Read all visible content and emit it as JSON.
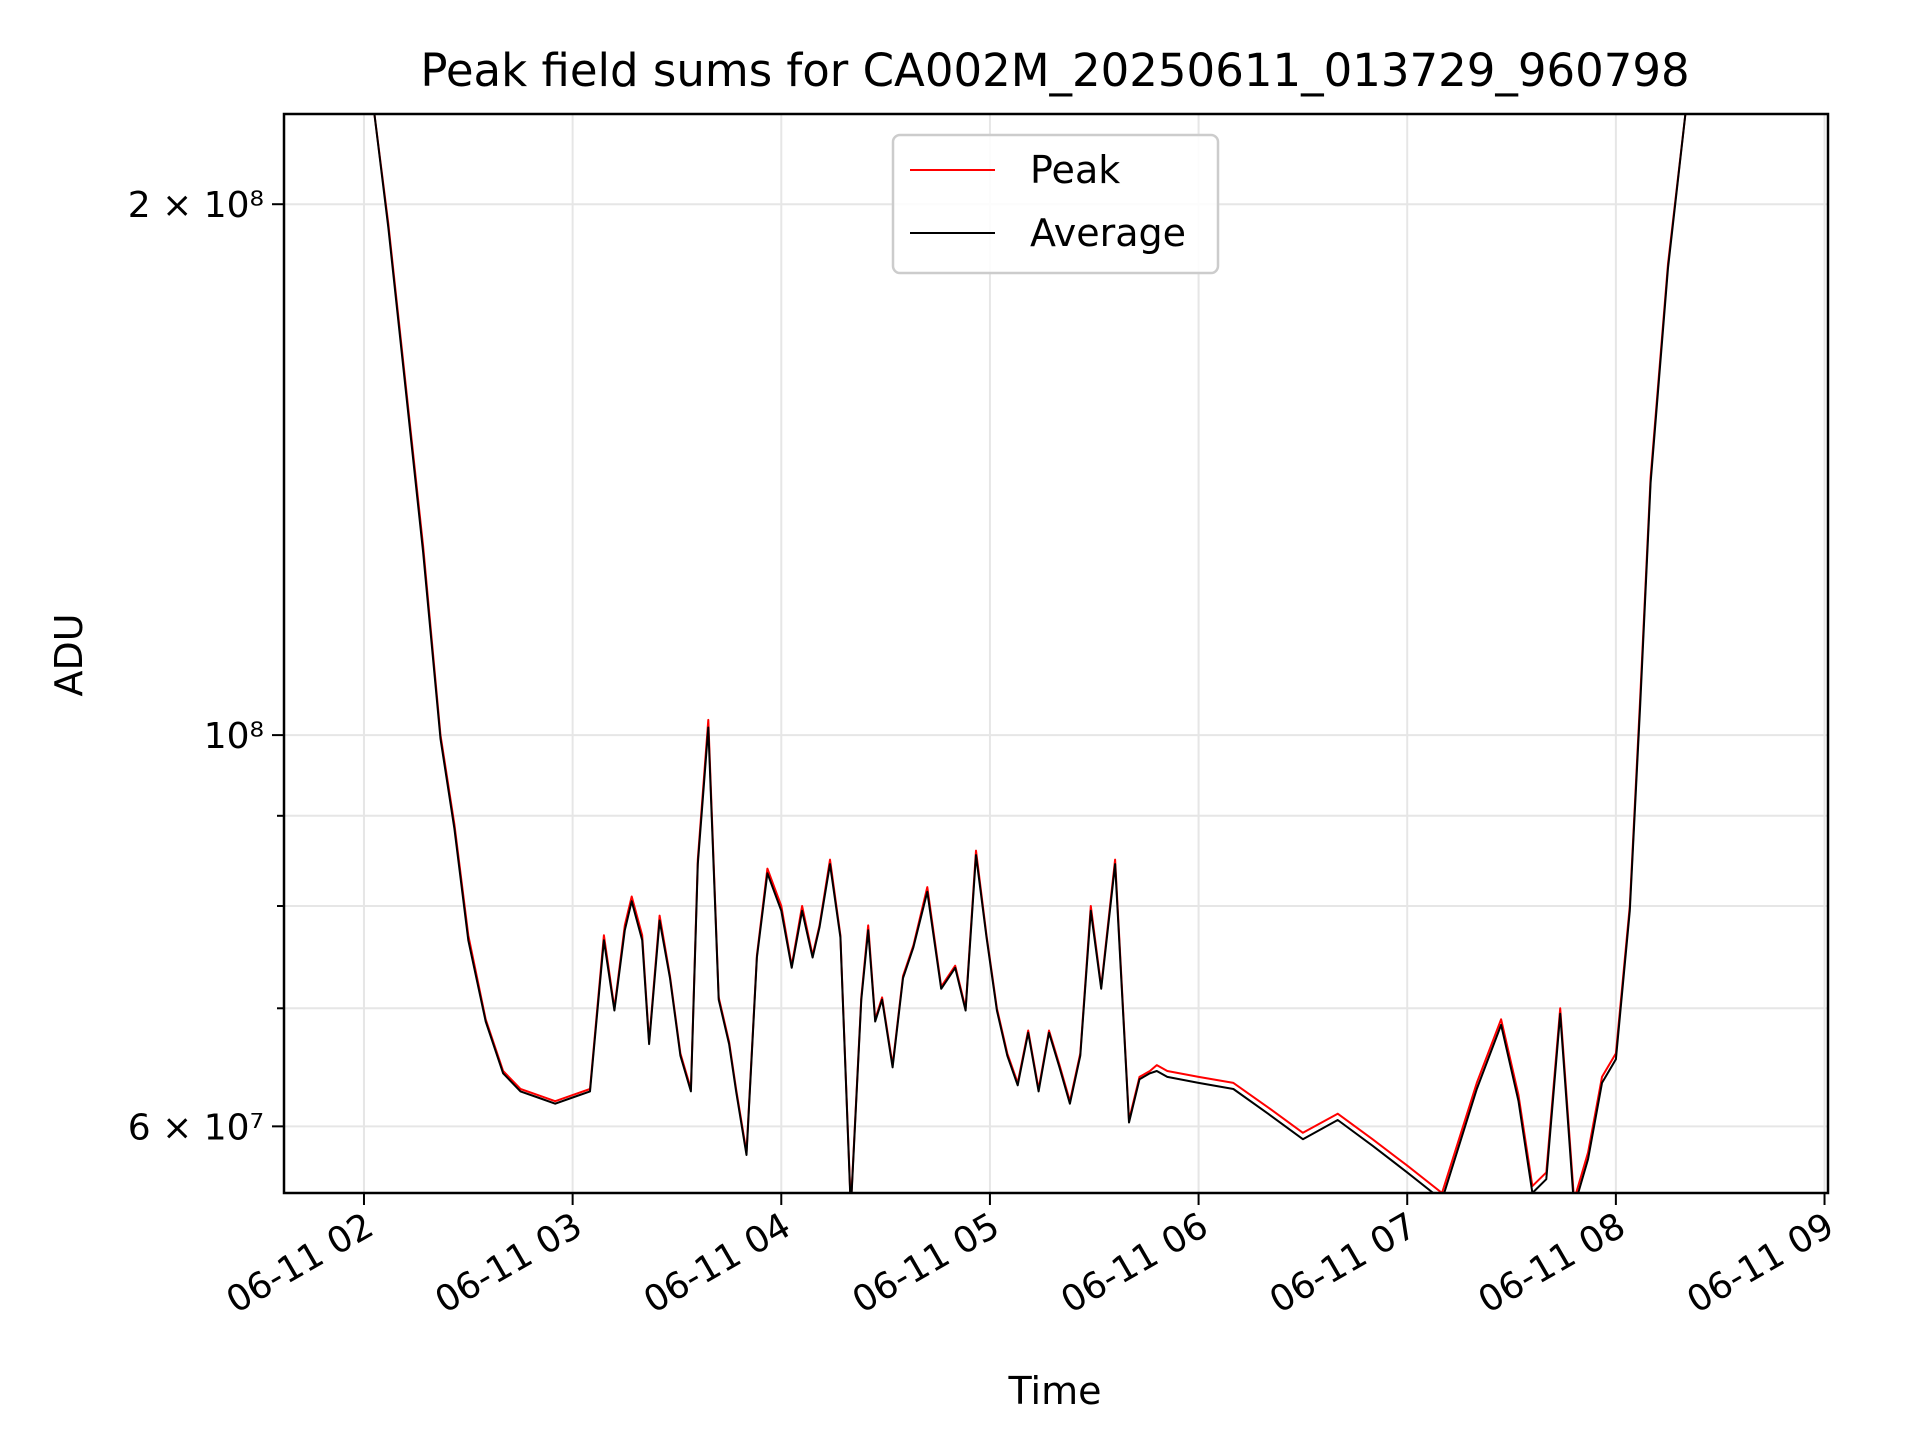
{
  "chart_data": {
    "type": "line",
    "title": "Peak field sums for CA002M_20250611_013729_960798",
    "xlabel": "Time",
    "ylabel": "ADU",
    "y_scale": "log",
    "grid": true,
    "legend_placement": "upper-center",
    "xlim": [
      "06-11 01:37",
      "06-11 09:01"
    ],
    "ylim": [
      55000000,
      225000000
    ],
    "x_ticks": [
      {
        "label": "06-11 02",
        "value": "06-11 02:00"
      },
      {
        "label": "06-11 03",
        "value": "06-11 03:00"
      },
      {
        "label": "06-11 04",
        "value": "06-11 04:00"
      },
      {
        "label": "06-11 05",
        "value": "06-11 05:00"
      },
      {
        "label": "06-11 06",
        "value": "06-11 06:00"
      },
      {
        "label": "06-11 07",
        "value": "06-11 07:00"
      },
      {
        "label": "06-11 08",
        "value": "06-11 08:00"
      },
      {
        "label": "06-11 09",
        "value": "06-11 09:00"
      }
    ],
    "y_ticks": [
      {
        "label": "2 × 10⁸",
        "value": 200000000
      },
      {
        "label": "10⁸",
        "value": 100000000
      },
      {
        "label": "6 × 10⁷",
        "value": 60000000
      }
    ],
    "y_minor_ticks": [
      70000000,
      80000000,
      90000000
    ],
    "series": [
      {
        "name": "Peak",
        "color": "#ff0000",
        "x": [
          "06-11 01:37",
          "06-11 02:03",
          "06-11 02:07",
          "06-11 02:12",
          "06-11 02:17",
          "06-11 02:22",
          "06-11 02:26",
          "06-11 02:30",
          "06-11 02:35",
          "06-11 02:40",
          "06-11 02:45",
          "06-11 02:50",
          "06-11 02:55",
          "06-11 03:00",
          "06-11 03:05",
          "06-11 03:09",
          "06-11 03:12",
          "06-11 03:15",
          "06-11 03:17",
          "06-11 03:20",
          "06-11 03:22",
          "06-11 03:25",
          "06-11 03:28",
          "06-11 03:31",
          "06-11 03:34",
          "06-11 03:36",
          "06-11 03:39",
          "06-11 03:42",
          "06-11 03:45",
          "06-11 03:47",
          "06-11 03:50",
          "06-11 03:53",
          "06-11 03:56",
          "06-11 04:00",
          "06-11 04:03",
          "06-11 04:06",
          "06-11 04:09",
          "06-11 04:11",
          "06-11 04:14",
          "06-11 04:17",
          "06-11 04:20",
          "06-11 04:23",
          "06-11 04:25",
          "06-11 04:27",
          "06-11 04:29",
          "06-11 04:32",
          "06-11 04:35",
          "06-11 04:38",
          "06-11 04:42",
          "06-11 04:46",
          "06-11 04:50",
          "06-11 04:53",
          "06-11 04:56",
          "06-11 04:59",
          "06-11 05:02",
          "06-11 05:05",
          "06-11 05:08",
          "06-11 05:11",
          "06-11 05:14",
          "06-11 05:17",
          "06-11 05:20",
          "06-11 05:23",
          "06-11 05:26",
          "06-11 05:29",
          "06-11 05:32",
          "06-11 05:36",
          "06-11 05:40",
          "06-11 05:43",
          "06-11 05:46",
          "06-11 05:48",
          "06-11 05:51",
          "06-11 06:00",
          "06-11 06:10",
          "06-11 06:20",
          "06-11 06:30",
          "06-11 06:40",
          "06-11 06:50",
          "06-11 07:00",
          "06-11 07:10",
          "06-11 07:20",
          "06-11 07:27",
          "06-11 07:32",
          "06-11 07:36",
          "06-11 07:40",
          "06-11 07:44",
          "06-11 07:48",
          "06-11 07:52",
          "06-11 07:56",
          "06-11 08:00",
          "06-11 08:04",
          "06-11 08:07",
          "06-11 08:10",
          "06-11 08:15",
          "06-11 08:20",
          "06-11 08:25",
          "06-11 08:30",
          "06-11 08:35",
          "06-11 08:40",
          "06-11 08:45",
          "06-11 09:01"
        ],
        "values": [
          225000000,
          225000000,
          195000000,
          158000000,
          128000000,
          100000000,
          89000000,
          77000000,
          69000000,
          64500000,
          63000000,
          62500000,
          62000000,
          62500000,
          63000000,
          77000000,
          70000000,
          78000000,
          81000000,
          77000000,
          67000000,
          79000000,
          73000000,
          66000000,
          63000000,
          85000000,
          102000000,
          71000000,
          67000000,
          63000000,
          58000000,
          75000000,
          84000000,
          80000000,
          74000000,
          80000000,
          75000000,
          78000000,
          85000000,
          77000000,
          54000000,
          71000000,
          78000000,
          69000000,
          71000000,
          65000000,
          73000000,
          76000000,
          82000000,
          72000000,
          74000000,
          70000000,
          86000000,
          77000000,
          70000000,
          66000000,
          63500000,
          68000000,
          63000000,
          68000000,
          65000000,
          62000000,
          66000000,
          80000000,
          72000000,
          85000000,
          60500000,
          64000000,
          64500000,
          65000000,
          64500000,
          64000000,
          63500000,
          61500000,
          59500000,
          61000000,
          59000000,
          57000000,
          55000000,
          63500000,
          69000000,
          62500000,
          55500000,
          56500000,
          70000000,
          54500000,
          58000000,
          64000000,
          66000000,
          80000000,
          105000000,
          140000000,
          185000000,
          225000000,
          225000000,
          225000000,
          225000000,
          225000000,
          225000000,
          225000000
        ]
      },
      {
        "name": "Average",
        "color": "#000000",
        "x": [
          "06-11 01:37",
          "06-11 02:03",
          "06-11 02:07",
          "06-11 02:12",
          "06-11 02:17",
          "06-11 02:22",
          "06-11 02:26",
          "06-11 02:30",
          "06-11 02:35",
          "06-11 02:40",
          "06-11 02:45",
          "06-11 02:50",
          "06-11 02:55",
          "06-11 03:00",
          "06-11 03:05",
          "06-11 03:09",
          "06-11 03:12",
          "06-11 03:15",
          "06-11 03:17",
          "06-11 03:20",
          "06-11 03:22",
          "06-11 03:25",
          "06-11 03:28",
          "06-11 03:31",
          "06-11 03:34",
          "06-11 03:36",
          "06-11 03:39",
          "06-11 03:42",
          "06-11 03:45",
          "06-11 03:47",
          "06-11 03:50",
          "06-11 03:53",
          "06-11 03:56",
          "06-11 04:00",
          "06-11 04:03",
          "06-11 04:06",
          "06-11 04:09",
          "06-11 04:11",
          "06-11 04:14",
          "06-11 04:17",
          "06-11 04:20",
          "06-11 04:23",
          "06-11 04:25",
          "06-11 04:27",
          "06-11 04:29",
          "06-11 04:32",
          "06-11 04:35",
          "06-11 04:38",
          "06-11 04:42",
          "06-11 04:46",
          "06-11 04:50",
          "06-11 04:53",
          "06-11 04:56",
          "06-11 04:59",
          "06-11 05:02",
          "06-11 05:05",
          "06-11 05:08",
          "06-11 05:11",
          "06-11 05:14",
          "06-11 05:17",
          "06-11 05:20",
          "06-11 05:23",
          "06-11 05:26",
          "06-11 05:29",
          "06-11 05:32",
          "06-11 05:36",
          "06-11 05:40",
          "06-11 05:43",
          "06-11 05:46",
          "06-11 05:48",
          "06-11 05:51",
          "06-11 06:00",
          "06-11 06:10",
          "06-11 06:20",
          "06-11 06:30",
          "06-11 06:40",
          "06-11 06:50",
          "06-11 07:00",
          "06-11 07:10",
          "06-11 07:20",
          "06-11 07:27",
          "06-11 07:32",
          "06-11 07:36",
          "06-11 07:40",
          "06-11 07:44",
          "06-11 07:48",
          "06-11 07:52",
          "06-11 07:56",
          "06-11 08:00",
          "06-11 08:04",
          "06-11 08:07",
          "06-11 08:10",
          "06-11 08:15",
          "06-11 08:20",
          "06-11 08:25",
          "06-11 08:30",
          "06-11 08:35",
          "06-11 08:40",
          "06-11 08:45",
          "06-11 09:01"
        ],
        "values": [
          225000000,
          225000000,
          194000000,
          157000000,
          127000000,
          99500000,
          88500000,
          76500000,
          68800000,
          64300000,
          62800000,
          62300000,
          61800000,
          62300000,
          62800000,
          76500000,
          69800000,
          77500000,
          80500000,
          76500000,
          66800000,
          78500000,
          72800000,
          65800000,
          62800000,
          84500000,
          101000000,
          70800000,
          66800000,
          62800000,
          57800000,
          74800000,
          83500000,
          79500000,
          73800000,
          79500000,
          74800000,
          77800000,
          84500000,
          76800000,
          53800000,
          70800000,
          77500000,
          68800000,
          70800000,
          64800000,
          72800000,
          75800000,
          81500000,
          71800000,
          73800000,
          69800000,
          85500000,
          76800000,
          69800000,
          65800000,
          63300000,
          67800000,
          62800000,
          67800000,
          64800000,
          61800000,
          65800000,
          79500000,
          71800000,
          84500000,
          60300000,
          63800000,
          64300000,
          64500000,
          64000000,
          63500000,
          63000000,
          61000000,
          59000000,
          60500000,
          58500000,
          56500000,
          54500000,
          63000000,
          68500000,
          62000000,
          55000000,
          56000000,
          69500000,
          54000000,
          57500000,
          63500000,
          65500000,
          79500000,
          104000000,
          139000000,
          184000000,
          225000000,
          225000000,
          225000000,
          225000000,
          225000000,
          225000000,
          225000000
        ]
      }
    ]
  }
}
